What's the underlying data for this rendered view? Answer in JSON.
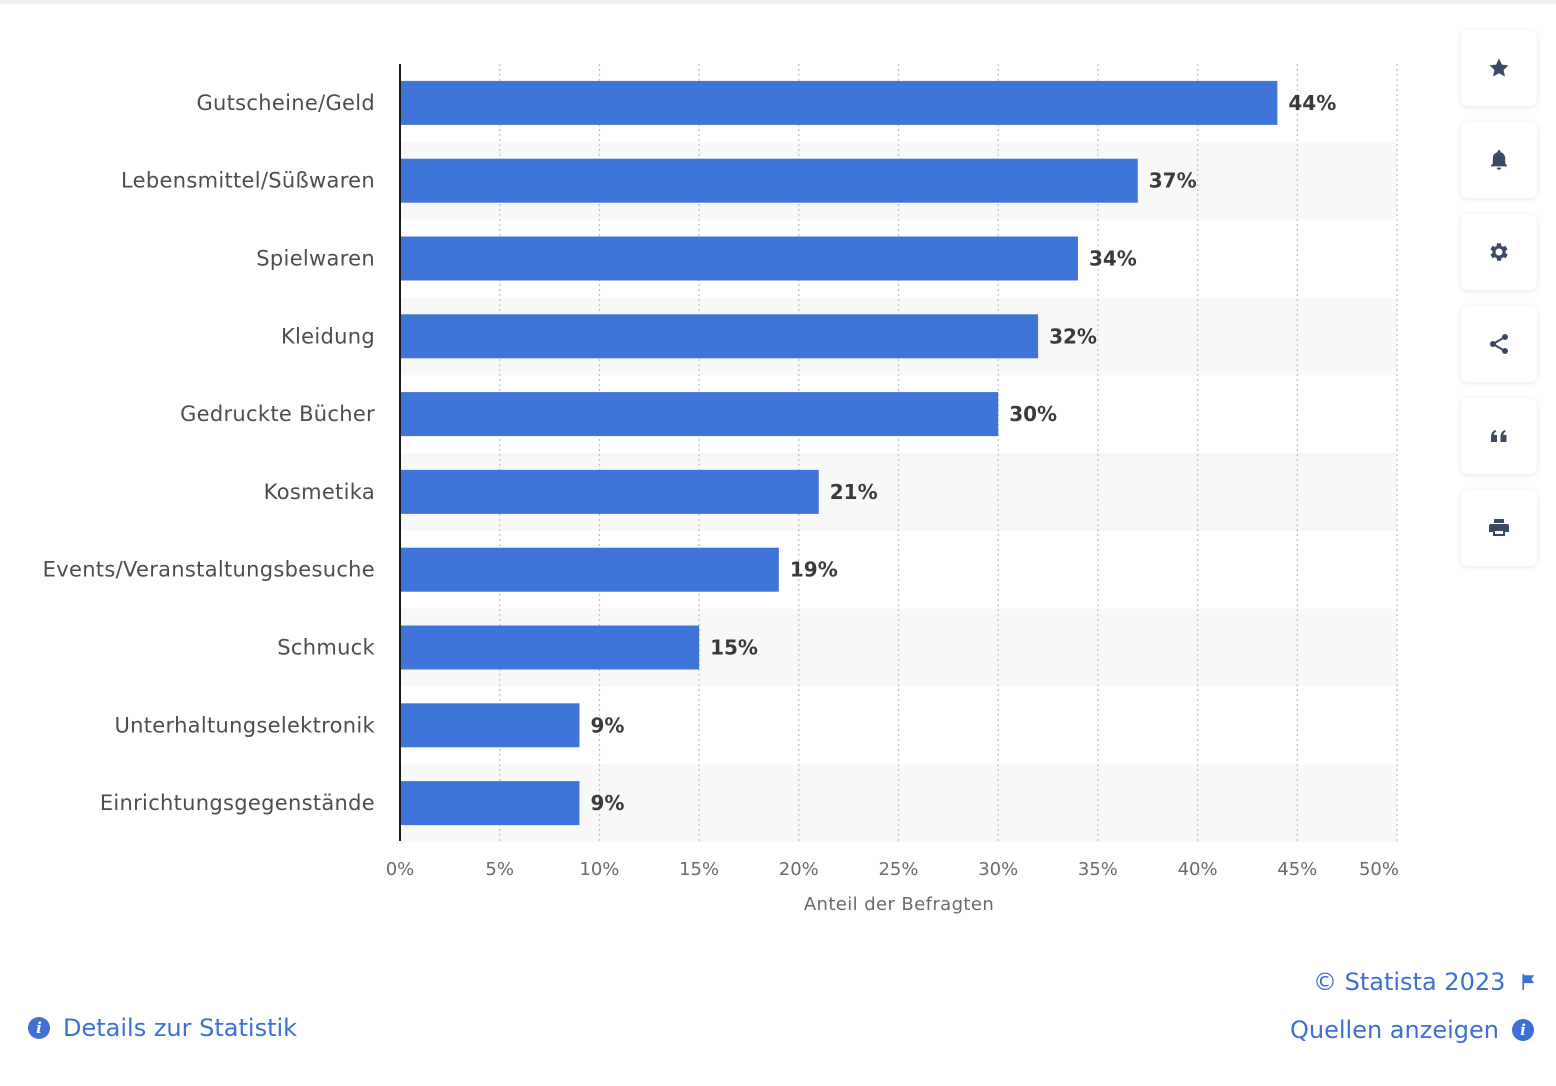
{
  "chart_data": {
    "type": "bar",
    "orientation": "horizontal",
    "categories": [
      "Gutscheine/Geld",
      "Lebensmittel/Süßwaren",
      "Spielwaren",
      "Kleidung",
      "Gedruckte Bücher",
      "Kosmetika",
      "Events/Veranstaltungsbesuche",
      "Schmuck",
      "Unterhaltungselektronik",
      "Einrichtungsgegenstände"
    ],
    "values": [
      44,
      37,
      34,
      32,
      30,
      21,
      19,
      15,
      9,
      9
    ],
    "value_labels": [
      "44%",
      "37%",
      "34%",
      "32%",
      "30%",
      "21%",
      "19%",
      "15%",
      "9%",
      "9%"
    ],
    "xlabel": "Anteil der Befragten",
    "ylabel": "",
    "xlim": [
      0,
      50
    ],
    "x_ticks": [
      "0%",
      "5%",
      "10%",
      "15%",
      "20%",
      "25%",
      "30%",
      "35%",
      "40%",
      "45%",
      "50%"
    ],
    "grid": "vertical dotted",
    "bar_color": "#3f74d8",
    "stripe_color": "#f8f8f8"
  },
  "toolbar": {
    "icons": [
      "star-icon",
      "bell-icon",
      "gear-icon",
      "share-icon",
      "quote-icon",
      "print-icon"
    ]
  },
  "footer": {
    "copyright": "© Statista 2023",
    "details_label": "Details zur Statistik",
    "sources_label": "Quellen anzeigen"
  },
  "colors": {
    "accent": "#3d6fd6",
    "icon": "#3b4a63"
  }
}
